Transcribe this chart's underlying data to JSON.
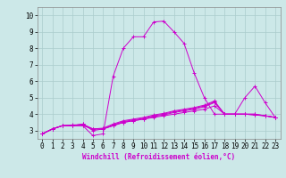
{
  "xlabel": "Windchill (Refroidissement éolien,°C)",
  "xlim": [
    -0.5,
    23.5
  ],
  "ylim": [
    2.5,
    10.5
  ],
  "bg_color": "#cce8e8",
  "line_color": "#cc00cc",
  "grid_color": "#aacccc",
  "xticks": [
    0,
    1,
    2,
    3,
    4,
    5,
    6,
    7,
    8,
    9,
    10,
    11,
    12,
    13,
    14,
    15,
    16,
    17,
    18,
    19,
    20,
    21,
    22,
    23
  ],
  "yticks": [
    3,
    4,
    5,
    6,
    7,
    8,
    9,
    10
  ],
  "series": [
    [
      2.8,
      3.1,
      3.3,
      3.3,
      3.3,
      2.7,
      2.8,
      6.3,
      8.0,
      8.7,
      8.7,
      9.6,
      9.65,
      9.0,
      8.3,
      6.5,
      5.0,
      4.0,
      4.0,
      4.0,
      5.0,
      5.7,
      4.7,
      3.8
    ],
    [
      2.8,
      3.1,
      3.3,
      3.3,
      3.4,
      3.0,
      3.1,
      3.3,
      3.5,
      3.6,
      3.7,
      3.8,
      3.9,
      4.0,
      4.1,
      4.2,
      4.3,
      4.5,
      4.0,
      4.0,
      4.0,
      4.0,
      3.9,
      3.8
    ],
    [
      2.8,
      3.1,
      3.3,
      3.3,
      3.3,
      3.1,
      3.1,
      3.3,
      3.5,
      3.6,
      3.7,
      3.85,
      3.95,
      4.1,
      4.2,
      4.3,
      4.45,
      4.7,
      4.0,
      4.0,
      4.0,
      3.95,
      3.9,
      3.8
    ],
    [
      2.8,
      3.1,
      3.3,
      3.3,
      3.4,
      3.1,
      3.1,
      3.35,
      3.55,
      3.65,
      3.75,
      3.9,
      4.0,
      4.15,
      4.25,
      4.35,
      4.5,
      4.75,
      4.0,
      4.0,
      4.0,
      3.95,
      3.9,
      3.8
    ],
    [
      2.8,
      3.1,
      3.3,
      3.35,
      3.35,
      3.1,
      3.15,
      3.4,
      3.6,
      3.7,
      3.8,
      3.95,
      4.05,
      4.2,
      4.3,
      4.4,
      4.55,
      4.8,
      4.0,
      4.0,
      4.0,
      4.0,
      3.9,
      3.8
    ]
  ],
  "tick_fontsize": 5.5,
  "xlabel_fontsize": 5.5
}
